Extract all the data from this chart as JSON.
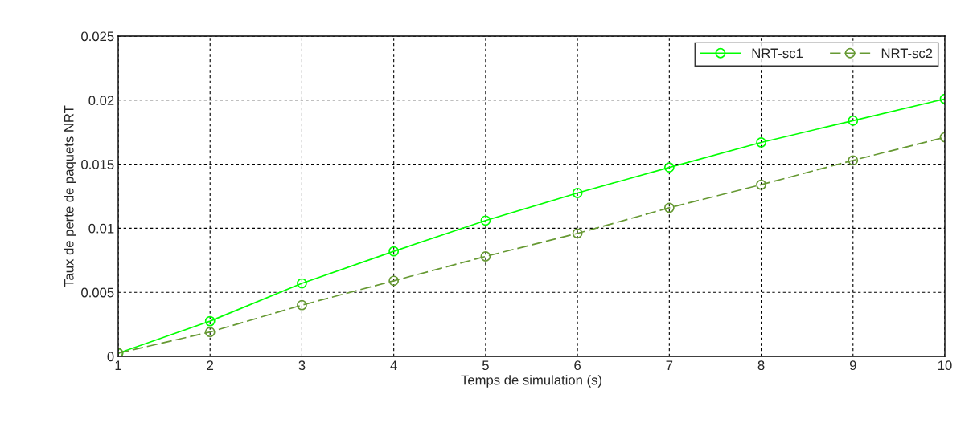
{
  "chart_data": {
    "type": "line",
    "xlabel": "Temps de simulation (s)",
    "ylabel": "Taux de perte de paquets NRT",
    "x": [
      1,
      2,
      3,
      4,
      5,
      6,
      7,
      8,
      9,
      10
    ],
    "series": [
      {
        "name": "NRT-sc1",
        "color": "#00ff00",
        "line_style": "solid",
        "values": [
          0.00025,
          0.00275,
          0.0057,
          0.0082,
          0.0106,
          0.01275,
          0.01475,
          0.0167,
          0.0184,
          0.0201
        ]
      },
      {
        "name": "NRT-sc2",
        "color": "#669933",
        "line_style": "dashed",
        "values": [
          0.00025,
          0.0019,
          0.004,
          0.0059,
          0.0078,
          0.0096,
          0.0116,
          0.0134,
          0.0153,
          0.0171
        ]
      }
    ],
    "xlim": [
      1,
      10
    ],
    "xticks": [
      1,
      2,
      3,
      4,
      5,
      6,
      7,
      8,
      9,
      10
    ],
    "ylim": [
      0,
      0.025
    ],
    "yticks": [
      0,
      0.005,
      0.01,
      0.015,
      0.02,
      0.025
    ],
    "grid": true,
    "legend": "top right",
    "marker": "circle"
  }
}
